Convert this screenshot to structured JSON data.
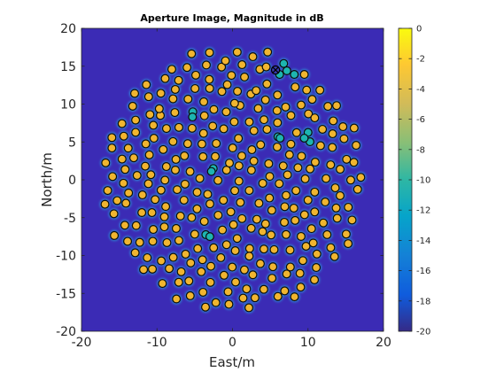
{
  "chart_data": {
    "type": "heatmap",
    "title": "Aperture Image, Magnitude in dB",
    "xlabel": "East/m",
    "ylabel": "North/m",
    "xlim": [
      -20,
      20
    ],
    "ylim": [
      -20,
      20
    ],
    "x_ticks": [
      "-20",
      "-10",
      "0",
      "10",
      "20"
    ],
    "y_ticks": [
      "20",
      "15",
      "10",
      "5",
      "0",
      "-5",
      "-10",
      "-15",
      "-20"
    ],
    "colorbar": {
      "range": [
        -20,
        0
      ],
      "ticks": [
        "0",
        "-2",
        "-4",
        "-6",
        "-8",
        "-10",
        "-12",
        "-14",
        "-16",
        "-18",
        "-20"
      ]
    },
    "aperture_radius_m": 17.5,
    "marked_element": [
      5.7,
      14.5
    ],
    "dims_elements": [
      [
        -5.3,
        8.3
      ],
      [
        6.3,
        5.5
      ],
      [
        -2.8,
        1.1
      ],
      [
        9.5,
        5.5
      ],
      [
        -3.0,
        -7.5
      ],
      [
        7.2,
        14.4
      ]
    ],
    "colors": {
      "background": "#3b2bb5",
      "element_fill": "#f0b530",
      "element_dim_fill": "#1db5b0",
      "element_edge": "#0c0c0c",
      "halo": "#35b3d8"
    }
  }
}
